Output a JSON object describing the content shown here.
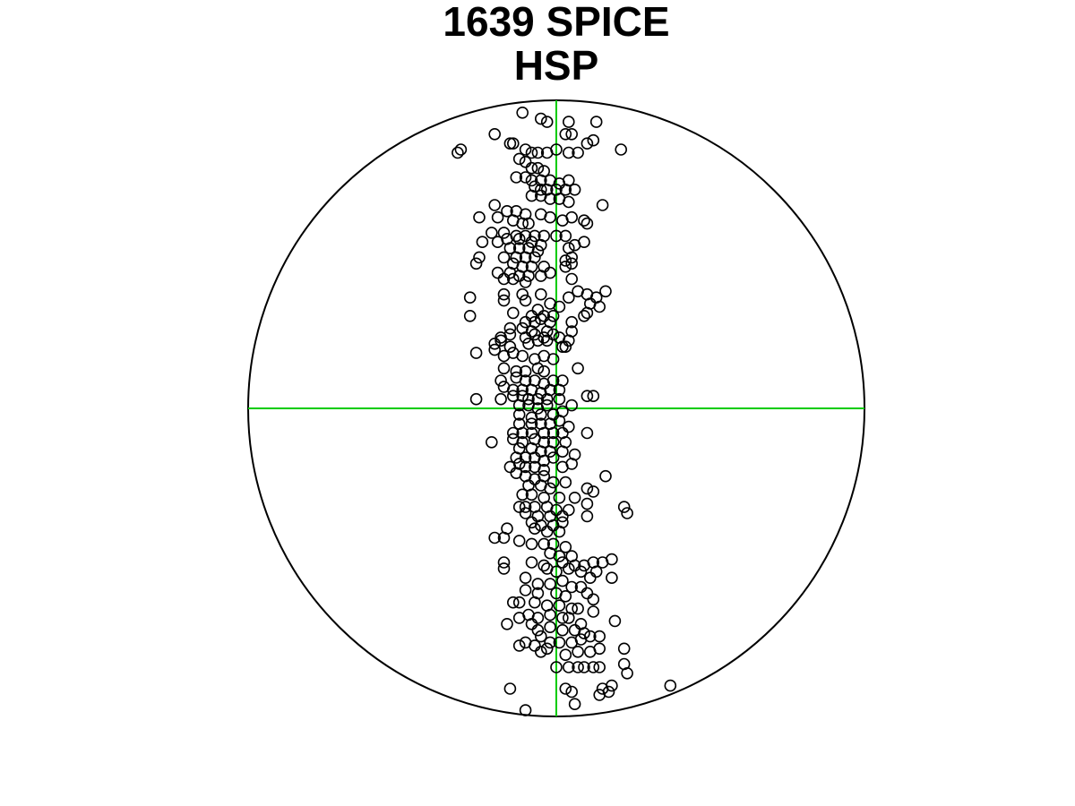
{
  "chart_data": {
    "type": "scatter",
    "title_lines": [
      "1639 SPICE",
      "HSP"
    ],
    "xlabel": "",
    "ylabel": "",
    "xlim": [
      -1,
      1
    ],
    "ylim": [
      -1,
      1
    ],
    "grid": false,
    "frame": "unit-circle",
    "colors": {
      "outline": "#000000",
      "crosshair": "#00cc00",
      "points": "#000000"
    },
    "points_xy_pairs": [
      [
        -0.11,
        0.96
      ],
      [
        -0.05,
        0.94
      ],
      [
        -0.03,
        0.93
      ],
      [
        0.04,
        0.93
      ],
      [
        0.13,
        0.93
      ],
      [
        -0.2,
        0.89
      ],
      [
        0.03,
        0.89
      ],
      [
        0.05,
        0.89
      ],
      [
        -0.31,
        0.84
      ],
      [
        -0.32,
        0.83
      ],
      [
        -0.14,
        0.86
      ],
      [
        -0.15,
        0.86
      ],
      [
        0.1,
        0.86
      ],
      [
        0.12,
        0.87
      ],
      [
        0.21,
        0.84
      ],
      [
        -0.1,
        0.84
      ],
      [
        -0.08,
        0.83
      ],
      [
        -0.06,
        0.83
      ],
      [
        -0.03,
        0.83
      ],
      [
        0.0,
        0.84
      ],
      [
        0.04,
        0.83
      ],
      [
        0.07,
        0.83
      ],
      [
        -0.12,
        0.81
      ],
      [
        -0.1,
        0.8
      ],
      [
        -0.08,
        0.78
      ],
      [
        -0.06,
        0.78
      ],
      [
        -0.04,
        0.77
      ],
      [
        -0.13,
        0.75
      ],
      [
        -0.1,
        0.75
      ],
      [
        -0.08,
        0.74
      ],
      [
        -0.05,
        0.74
      ],
      [
        -0.02,
        0.74
      ],
      [
        0.01,
        0.73
      ],
      [
        0.04,
        0.74
      ],
      [
        -0.07,
        0.72
      ],
      [
        -0.05,
        0.71
      ],
      [
        -0.03,
        0.71
      ],
      [
        0.0,
        0.71
      ],
      [
        0.03,
        0.71
      ],
      [
        0.06,
        0.71
      ],
      [
        -0.08,
        0.69
      ],
      [
        -0.05,
        0.69
      ],
      [
        -0.02,
        0.68
      ],
      [
        0.01,
        0.68
      ],
      [
        0.04,
        0.67
      ],
      [
        0.15,
        0.66
      ],
      [
        -0.2,
        0.66
      ],
      [
        -0.16,
        0.64
      ],
      [
        -0.13,
        0.64
      ],
      [
        -0.1,
        0.63
      ],
      [
        -0.05,
        0.63
      ],
      [
        -0.02,
        0.62
      ],
      [
        0.02,
        0.61
      ],
      [
        0.05,
        0.62
      ],
      [
        -0.25,
        0.62
      ],
      [
        -0.19,
        0.62
      ],
      [
        -0.14,
        0.61
      ],
      [
        -0.11,
        0.6
      ],
      [
        -0.09,
        0.6
      ],
      [
        0.09,
        0.61
      ],
      [
        0.1,
        0.6
      ],
      [
        -0.21,
        0.57
      ],
      [
        -0.17,
        0.57
      ],
      [
        -0.13,
        0.56
      ],
      [
        -0.1,
        0.56
      ],
      [
        -0.07,
        0.56
      ],
      [
        -0.04,
        0.56
      ],
      [
        0.0,
        0.56
      ],
      [
        0.03,
        0.56
      ],
      [
        -0.24,
        0.54
      ],
      [
        -0.19,
        0.54
      ],
      [
        -0.16,
        0.55
      ],
      [
        -0.12,
        0.55
      ],
      [
        -0.08,
        0.54
      ],
      [
        -0.05,
        0.53
      ],
      [
        0.09,
        0.54
      ],
      [
        -0.15,
        0.52
      ],
      [
        -0.12,
        0.52
      ],
      [
        -0.09,
        0.52
      ],
      [
        -0.06,
        0.51
      ],
      [
        0.04,
        0.52
      ],
      [
        0.06,
        0.53
      ],
      [
        -0.25,
        0.49
      ],
      [
        -0.17,
        0.49
      ],
      [
        -0.13,
        0.49
      ],
      [
        -0.1,
        0.49
      ],
      [
        -0.07,
        0.49
      ],
      [
        0.03,
        0.48
      ],
      [
        0.05,
        0.49
      ],
      [
        -0.26,
        0.47
      ],
      [
        -0.14,
        0.47
      ],
      [
        -0.11,
        0.46
      ],
      [
        -0.08,
        0.46
      ],
      [
        -0.04,
        0.46
      ],
      [
        0.03,
        0.46
      ],
      [
        0.05,
        0.47
      ],
      [
        -0.19,
        0.44
      ],
      [
        -0.15,
        0.44
      ],
      [
        -0.12,
        0.43
      ],
      [
        -0.09,
        0.43
      ],
      [
        -0.05,
        0.43
      ],
      [
        -0.02,
        0.44
      ],
      [
        -0.17,
        0.42
      ],
      [
        -0.14,
        0.42
      ],
      [
        -0.1,
        0.41
      ],
      [
        0.05,
        0.42
      ],
      [
        -0.28,
        0.36
      ],
      [
        -0.17,
        0.37
      ],
      [
        -0.11,
        0.37
      ],
      [
        -0.05,
        0.37
      ],
      [
        0.04,
        0.36
      ],
      [
        0.07,
        0.38
      ],
      [
        0.1,
        0.37
      ],
      [
        0.13,
        0.36
      ],
      [
        0.16,
        0.38
      ],
      [
        -0.17,
        0.35
      ],
      [
        -0.1,
        0.35
      ],
      [
        -0.02,
        0.34
      ],
      [
        0.01,
        0.33
      ],
      [
        0.11,
        0.34
      ],
      [
        0.14,
        0.33
      ],
      [
        -0.28,
        0.3
      ],
      [
        -0.14,
        0.31
      ],
      [
        -0.08,
        0.3
      ],
      [
        -0.06,
        0.32
      ],
      [
        -0.04,
        0.3
      ],
      [
        -0.01,
        0.3
      ],
      [
        0.09,
        0.3
      ],
      [
        0.1,
        0.31
      ],
      [
        -0.1,
        0.28
      ],
      [
        -0.07,
        0.28
      ],
      [
        -0.05,
        0.29
      ],
      [
        -0.02,
        0.28
      ],
      [
        0.05,
        0.28
      ],
      [
        -0.15,
        0.26
      ],
      [
        -0.11,
        0.26
      ],
      [
        -0.08,
        0.25
      ],
      [
        -0.03,
        0.25
      ],
      [
        0.05,
        0.25
      ],
      [
        -0.18,
        0.23
      ],
      [
        -0.15,
        0.24
      ],
      [
        -0.1,
        0.23
      ],
      [
        -0.07,
        0.24
      ],
      [
        -0.04,
        0.23
      ],
      [
        -0.01,
        0.24
      ],
      [
        0.01,
        0.23
      ],
      [
        0.04,
        0.22
      ],
      [
        -0.2,
        0.21
      ],
      [
        -0.18,
        0.22
      ],
      [
        -0.15,
        0.2
      ],
      [
        -0.09,
        0.21
      ],
      [
        -0.06,
        0.22
      ],
      [
        -0.03,
        0.22
      ],
      [
        0.02,
        0.2
      ],
      [
        0.03,
        0.2
      ],
      [
        -0.26,
        0.18
      ],
      [
        -0.2,
        0.19
      ],
      [
        -0.17,
        0.17
      ],
      [
        -0.14,
        0.18
      ],
      [
        -0.11,
        0.17
      ],
      [
        -0.07,
        0.16
      ],
      [
        -0.04,
        0.17
      ],
      [
        -0.01,
        0.16
      ],
      [
        0.07,
        0.13
      ],
      [
        -0.17,
        0.13
      ],
      [
        -0.13,
        0.12
      ],
      [
        -0.1,
        0.12
      ],
      [
        -0.06,
        0.13
      ],
      [
        -0.04,
        0.12
      ],
      [
        -0.18,
        0.09
      ],
      [
        -0.13,
        0.1
      ],
      [
        -0.1,
        0.09
      ],
      [
        -0.07,
        0.09
      ],
      [
        -0.04,
        0.08
      ],
      [
        -0.01,
        0.09
      ],
      [
        0.02,
        0.09
      ],
      [
        -0.17,
        0.07
      ],
      [
        -0.14,
        0.06
      ],
      [
        -0.11,
        0.06
      ],
      [
        -0.08,
        0.06
      ],
      [
        -0.05,
        0.05
      ],
      [
        -0.02,
        0.06
      ],
      [
        0.01,
        0.06
      ],
      [
        -0.14,
        0.04
      ],
      [
        -0.11,
        0.04
      ],
      [
        -0.09,
        0.03
      ],
      [
        -0.06,
        0.03
      ],
      [
        -0.03,
        0.03
      ],
      [
        0.01,
        0.03
      ],
      [
        -0.26,
        0.03
      ],
      [
        -0.18,
        0.03
      ],
      [
        0.1,
        0.04
      ],
      [
        0.12,
        0.04
      ],
      [
        -0.12,
        0.01
      ],
      [
        -0.09,
        0.01
      ],
      [
        -0.06,
        0.0
      ],
      [
        -0.03,
        0.01
      ],
      [
        0.05,
        0.01
      ],
      [
        -0.12,
        -0.02
      ],
      [
        -0.08,
        -0.03
      ],
      [
        -0.05,
        -0.02
      ],
      [
        -0.01,
        -0.02
      ],
      [
        0.02,
        -0.01
      ],
      [
        -0.12,
        -0.05
      ],
      [
        -0.08,
        -0.05
      ],
      [
        -0.05,
        -0.05
      ],
      [
        -0.02,
        -0.05
      ],
      [
        0.01,
        -0.04
      ],
      [
        0.04,
        -0.06
      ],
      [
        -0.14,
        -0.08
      ],
      [
        -0.11,
        -0.08
      ],
      [
        -0.08,
        -0.08
      ],
      [
        -0.04,
        -0.08
      ],
      [
        -0.01,
        -0.08
      ],
      [
        0.02,
        -0.08
      ],
      [
        0.1,
        -0.08
      ],
      [
        -0.21,
        -0.11
      ],
      [
        -0.14,
        -0.1
      ],
      [
        -0.11,
        -0.11
      ],
      [
        -0.07,
        -0.1
      ],
      [
        -0.04,
        -0.11
      ],
      [
        -0.01,
        -0.11
      ],
      [
        0.03,
        -0.11
      ],
      [
        -0.12,
        -0.13
      ],
      [
        -0.08,
        -0.13
      ],
      [
        -0.05,
        -0.14
      ],
      [
        -0.02,
        -0.14
      ],
      [
        0.02,
        -0.14
      ],
      [
        0.06,
        -0.15
      ],
      [
        -0.13,
        -0.16
      ],
      [
        -0.1,
        -0.16
      ],
      [
        -0.07,
        -0.16
      ],
      [
        -0.04,
        -0.17
      ],
      [
        -0.01,
        -0.16
      ],
      [
        -0.15,
        -0.19
      ],
      [
        -0.12,
        -0.18
      ],
      [
        -0.1,
        -0.19
      ],
      [
        -0.07,
        -0.19
      ],
      [
        -0.04,
        -0.2
      ],
      [
        0.02,
        -0.19
      ],
      [
        0.05,
        -0.18
      ],
      [
        0.16,
        -0.22
      ],
      [
        -0.13,
        -0.21
      ],
      [
        -0.1,
        -0.22
      ],
      [
        -0.07,
        -0.23
      ],
      [
        -0.04,
        -0.22
      ],
      [
        -0.01,
        -0.24
      ],
      [
        0.03,
        -0.24
      ],
      [
        -0.09,
        -0.25
      ],
      [
        -0.05,
        -0.25
      ],
      [
        -0.02,
        -0.26
      ],
      [
        0.1,
        -0.26
      ],
      [
        0.12,
        -0.27
      ],
      [
        -0.11,
        -0.28
      ],
      [
        -0.08,
        -0.28
      ],
      [
        -0.04,
        -0.29
      ],
      [
        0.01,
        -0.29
      ],
      [
        0.06,
        -0.29
      ],
      [
        -0.12,
        -0.32
      ],
      [
        -0.1,
        -0.32
      ],
      [
        -0.07,
        -0.32
      ],
      [
        -0.03,
        -0.32
      ],
      [
        0.0,
        -0.33
      ],
      [
        0.04,
        -0.33
      ],
      [
        0.1,
        -0.31
      ],
      [
        0.22,
        -0.32
      ],
      [
        0.23,
        -0.34
      ],
      [
        -0.1,
        -0.34
      ],
      [
        -0.06,
        -0.35
      ],
      [
        -0.02,
        -0.35
      ],
      [
        0.02,
        -0.35
      ],
      [
        0.1,
        -0.35
      ],
      [
        -0.08,
        -0.37
      ],
      [
        -0.05,
        -0.38
      ],
      [
        -0.01,
        -0.38
      ],
      [
        0.02,
        -0.37
      ],
      [
        -0.07,
        -0.39
      ],
      [
        -0.03,
        -0.4
      ],
      [
        0.01,
        -0.4
      ],
      [
        -0.16,
        -0.39
      ],
      [
        -0.2,
        -0.42
      ],
      [
        -0.17,
        -0.42
      ],
      [
        -0.12,
        -0.43
      ],
      [
        -0.08,
        -0.44
      ],
      [
        -0.04,
        -0.44
      ],
      [
        -0.01,
        -0.44
      ],
      [
        0.03,
        -0.45
      ],
      [
        -0.02,
        -0.47
      ],
      [
        0.01,
        -0.48
      ],
      [
        0.05,
        -0.48
      ],
      [
        -0.17,
        -0.5
      ],
      [
        -0.08,
        -0.5
      ],
      [
        -0.04,
        -0.51
      ],
      [
        0.02,
        -0.5
      ],
      [
        0.06,
        -0.51
      ],
      [
        0.09,
        -0.51
      ],
      [
        0.12,
        -0.5
      ],
      [
        0.15,
        -0.5
      ],
      [
        0.18,
        -0.49
      ],
      [
        -0.17,
        -0.52
      ],
      [
        -0.03,
        -0.52
      ],
      [
        0.0,
        -0.53
      ],
      [
        0.04,
        -0.52
      ],
      [
        0.08,
        -0.53
      ],
      [
        0.13,
        -0.53
      ],
      [
        0.18,
        -0.55
      ],
      [
        0.11,
        -0.55
      ],
      [
        -0.1,
        -0.55
      ],
      [
        -0.06,
        -0.57
      ],
      [
        -0.02,
        -0.57
      ],
      [
        0.02,
        -0.56
      ],
      [
        0.05,
        -0.58
      ],
      [
        0.08,
        -0.58
      ],
      [
        -0.1,
        -0.59
      ],
      [
        -0.06,
        -0.6
      ],
      [
        0.0,
        -0.6
      ],
      [
        0.03,
        -0.61
      ],
      [
        0.1,
        -0.6
      ],
      [
        0.12,
        -0.62
      ],
      [
        -0.14,
        -0.63
      ],
      [
        -0.12,
        -0.63
      ],
      [
        -0.07,
        -0.63
      ],
      [
        -0.03,
        -0.64
      ],
      [
        0.01,
        -0.64
      ],
      [
        0.05,
        -0.65
      ],
      [
        0.07,
        -0.65
      ],
      [
        0.12,
        -0.66
      ],
      [
        -0.09,
        -0.67
      ],
      [
        -0.06,
        -0.68
      ],
      [
        -0.02,
        -0.67
      ],
      [
        0.02,
        -0.68
      ],
      [
        0.04,
        -0.68
      ],
      [
        0.08,
        -0.7
      ],
      [
        -0.16,
        -0.7
      ],
      [
        -0.12,
        -0.68
      ],
      [
        -0.08,
        -0.7
      ],
      [
        0.19,
        -0.69
      ],
      [
        -0.06,
        -0.72
      ],
      [
        -0.02,
        -0.71
      ],
      [
        0.02,
        -0.72
      ],
      [
        0.06,
        -0.72
      ],
      [
        0.09,
        -0.73
      ],
      [
        -0.05,
        -0.74
      ],
      [
        -0.02,
        -0.76
      ],
      [
        0.01,
        -0.76
      ],
      [
        0.05,
        -0.76
      ],
      [
        0.08,
        -0.75
      ],
      [
        0.11,
        -0.74
      ],
      [
        0.14,
        -0.74
      ],
      [
        -0.12,
        -0.77
      ],
      [
        -0.1,
        -0.76
      ],
      [
        -0.07,
        -0.77
      ],
      [
        -0.05,
        -0.79
      ],
      [
        -0.03,
        -0.78
      ],
      [
        0.03,
        -0.8
      ],
      [
        0.07,
        -0.79
      ],
      [
        0.11,
        -0.79
      ],
      [
        0.14,
        -0.78
      ],
      [
        0.22,
        -0.78
      ],
      [
        0.0,
        -0.84
      ],
      [
        0.04,
        -0.84
      ],
      [
        0.07,
        -0.84
      ],
      [
        0.09,
        -0.84
      ],
      [
        0.12,
        -0.84
      ],
      [
        0.14,
        -0.84
      ],
      [
        0.22,
        -0.83
      ],
      [
        0.23,
        -0.86
      ],
      [
        -0.15,
        -0.91
      ],
      [
        0.03,
        -0.91
      ],
      [
        0.05,
        -0.92
      ],
      [
        0.15,
        -0.91
      ],
      [
        0.17,
        -0.92
      ],
      [
        0.18,
        -0.9
      ],
      [
        0.37,
        -0.9
      ],
      [
        0.06,
        -0.96
      ],
      [
        -0.1,
        -0.98
      ],
      [
        0.14,
        -0.93
      ]
    ]
  }
}
